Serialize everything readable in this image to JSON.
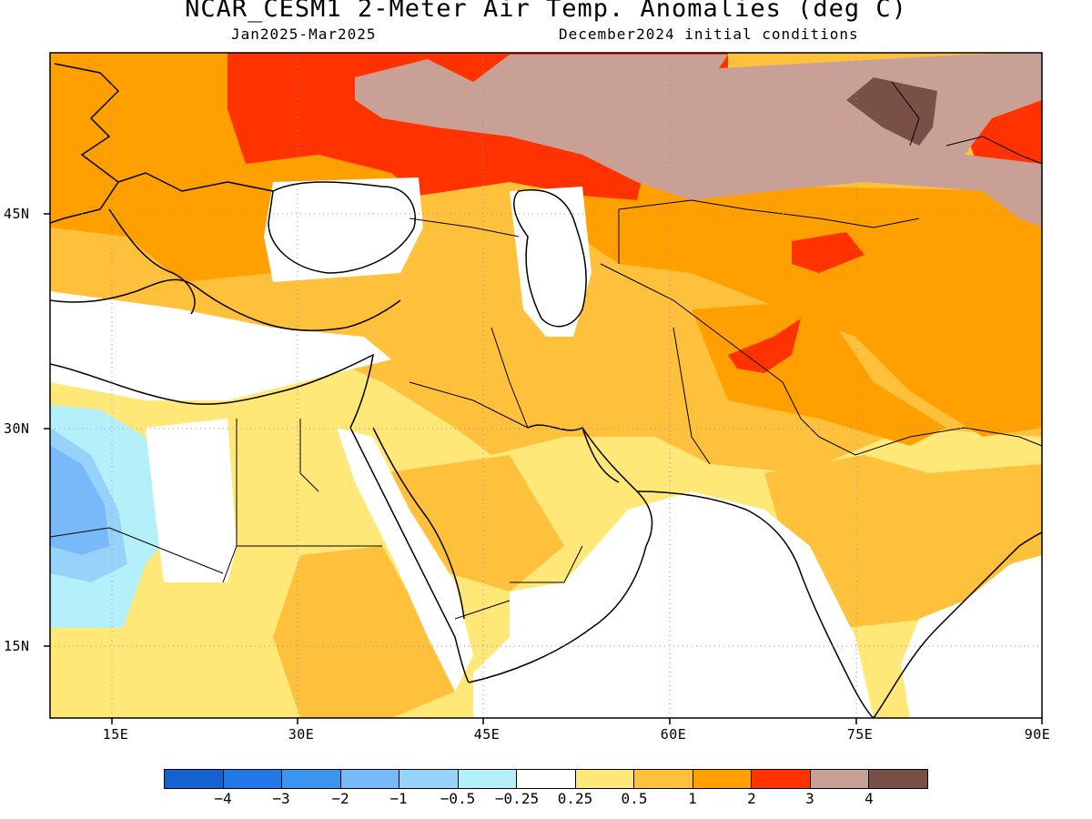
{
  "header": {
    "title": "NCAR_CESM1 2-Meter Air Temp. Anomalies (deg C)",
    "period": "Jan2025-Mar2025",
    "init": "December2024 initial conditions"
  },
  "axes": {
    "lat_labels": [
      "45N",
      "30N",
      "15N"
    ],
    "lon_labels": [
      "15E",
      "30E",
      "45E",
      "60E",
      "75E",
      "90E"
    ]
  },
  "colorbar": {
    "labels": [
      "-4",
      "-3",
      "-2",
      "-1",
      "-0.5",
      "-0.25",
      "0.25",
      "0.5",
      "1",
      "2",
      "3",
      "4"
    ],
    "colors": [
      "#1462d2",
      "#2278e8",
      "#3c96f0",
      "#78b9fa",
      "#96d2fa",
      "#b4f0fa",
      "#ffffff",
      "#ffe878",
      "#ffc03c",
      "#ffa000",
      "#ff3200",
      "#c8a096",
      "#785046"
    ]
  },
  "map": {
    "extent": {
      "lon": [
        10,
        90
      ],
      "lat": [
        10,
        57
      ]
    },
    "grid": "dotted, 15 degree spacing",
    "background": "#ffffff"
  }
}
